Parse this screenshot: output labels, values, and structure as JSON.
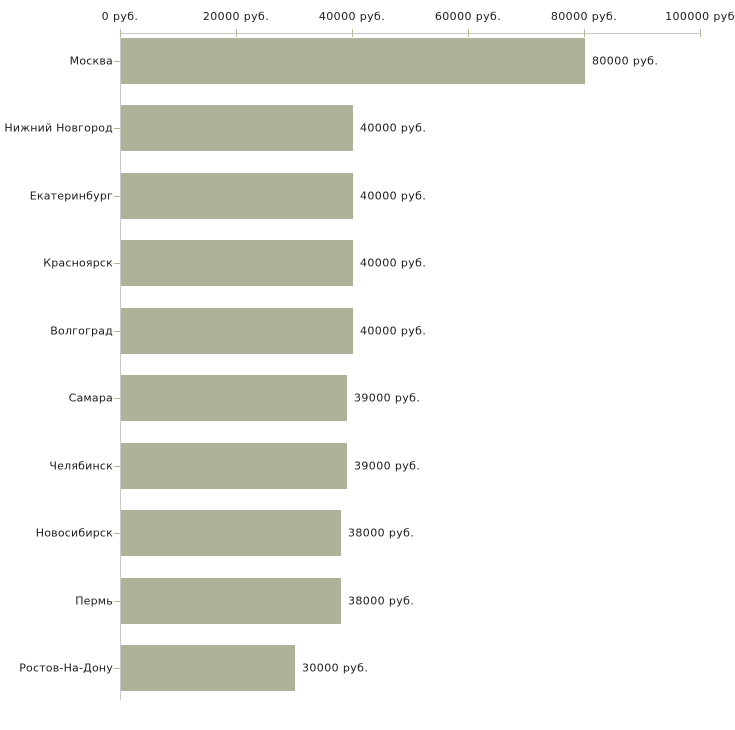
{
  "chart_data": {
    "type": "bar",
    "orientation": "horizontal",
    "title": "",
    "categories": [
      "Москва",
      "Нижний Новгород",
      "Екатеринбург",
      "Красноярск",
      "Волгоград",
      "Самара",
      "Челябинск",
      "Новосибирск",
      "Пермь",
      "Ростов-На-Дону"
    ],
    "values": [
      80000,
      40000,
      40000,
      40000,
      40000,
      39000,
      39000,
      38000,
      38000,
      30000
    ],
    "value_labels": [
      "80000 руб.",
      "40000 руб.",
      "40000 руб.",
      "40000 руб.",
      "40000 руб.",
      "39000 руб.",
      "39000 руб.",
      "38000 руб.",
      "38000 руб.",
      "30000 руб."
    ],
    "x_axis": {
      "position": "top",
      "min": 0,
      "max": 100000,
      "ticks": [
        0,
        20000,
        40000,
        60000,
        80000,
        100000
      ],
      "tick_labels": [
        "0 руб.",
        "20000 руб.",
        "40000 руб.",
        "60000 руб.",
        "80000 руб.",
        "100000 руб"
      ]
    },
    "grid": false,
    "legend": null,
    "colors": {
      "bar": "#adb298",
      "axis_line": "#c9c9c9",
      "tick": "#b9b991",
      "text": "#1c1c1c",
      "background": "#ffffff"
    }
  }
}
